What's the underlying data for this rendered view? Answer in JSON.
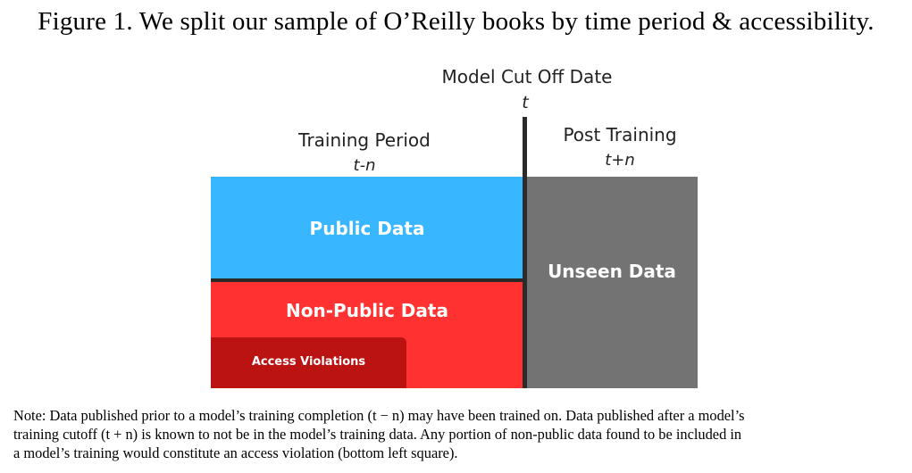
{
  "figure": {
    "title": "Figure 1. We split our sample of O’Reilly books by time period & accessibility."
  },
  "diagram": {
    "cutoff_label": "Model Cut Off Date",
    "cutoff_symbol": "t",
    "training_period_label": "Training Period",
    "training_period_symbol": "t-n",
    "post_training_label": "Post Training",
    "post_training_symbol": "t+n",
    "public_data_label": "Public Data",
    "non_public_data_label": "Non-Public Data",
    "access_violations_label": "Access Violations",
    "unseen_data_label": "Unseen Data",
    "colors": {
      "public": "#38b6ff",
      "non_public": "#ff3131",
      "access_violations": "#bb1212",
      "unseen": "#737373",
      "cutoff_line": "#2b2b2b"
    }
  },
  "note": {
    "lines": [
      "Note: Data published prior to a model’s training completion (t − n) may have been trained on. Data published after a model’s",
      "training cutoff (t + n) is known to not be in the model’s training data. Any portion of non-public data found to be included in",
      "a model’s training would constitute an access violation (bottom left square)."
    ]
  }
}
